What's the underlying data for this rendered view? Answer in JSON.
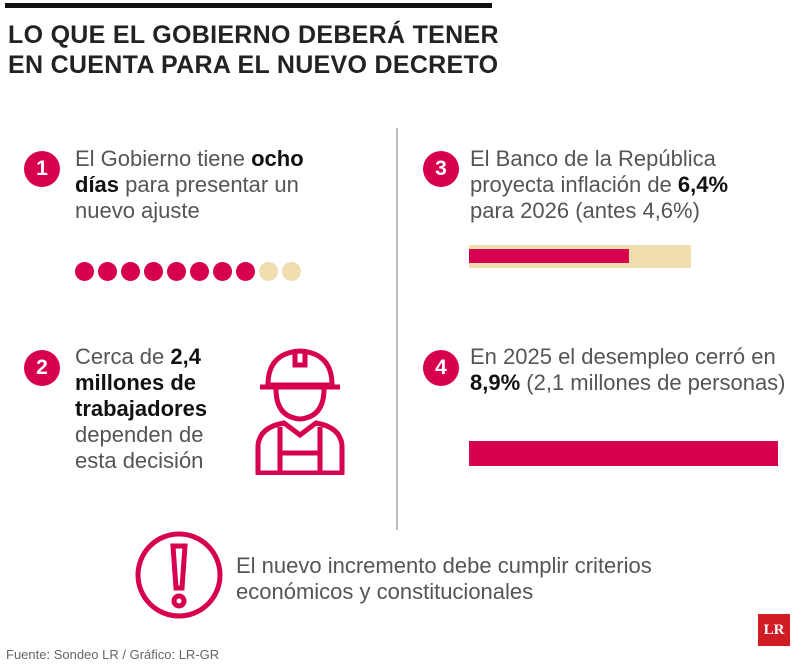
{
  "title": [
    "LO QUE EL GOBIERNO DEBERÁ TENER",
    "EN CUENTA PARA EL NUEVO DECRETO"
  ],
  "items": [
    {
      "number": "1",
      "pre": "El Gobierno tiene ",
      "bold": "ocho días",
      "post": " para presentar un nuevo ajuste",
      "dots_filled": 8,
      "dots_total": 10
    },
    {
      "number": "2",
      "pre": "Cerca de ",
      "bold": "2,4 millones de trabajadores",
      "post": " dependen de esta decisión",
      "icon": "worker-hardhat-icon"
    },
    {
      "number": "3",
      "pre": "El Banco de la República proyecta inflación de ",
      "bold": "6,4%",
      "post": " para 2026 (antes 4,6%)",
      "bar_fraction": 0.72
    },
    {
      "number": "4",
      "pre": "En 2025 el desempleo cerró en ",
      "bold": "8,9%",
      "post": " (2,1 millones de personas)",
      "bar_fraction": 1.0
    }
  ],
  "note": "El nuevo incremento debe cumplir criterios económicos y constitucionales",
  "source": "Fuente: Sondeo LR / Gráfico: LR-GR",
  "logo": "LR",
  "colors": {
    "accent": "#d6004f",
    "track": "#f0deb0",
    "logo": "#d21c25"
  }
}
